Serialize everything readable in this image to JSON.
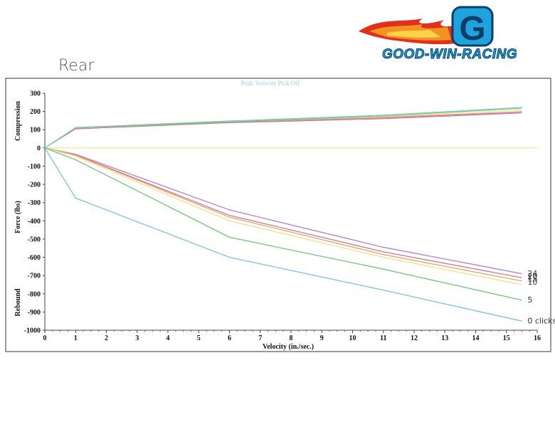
{
  "header": {
    "note": "Rear",
    "logo_text": "GOOD-WIN-RACING",
    "logo_letter": "G",
    "logo_name": "good-win-racing-logo"
  },
  "colors": {
    "logo_blue": "#1fa3dc",
    "logo_orange": "#f39321",
    "logo_red": "#e0301e",
    "frame": "#555555",
    "grid_zero": "#e8e08a"
  },
  "chart_data": {
    "type": "line",
    "title": "Peak Velocity Pick Off",
    "xlabel": "Velocity (in./sec.)",
    "ylabel": "Force (lbs)",
    "ylabel_top": "Compression",
    "ylabel_bottom": "Rebound",
    "xlim": [
      0,
      16
    ],
    "ylim": [
      -1000,
      300
    ],
    "x_ticks": [
      0,
      1,
      2,
      3,
      4,
      5,
      6,
      7,
      8,
      9,
      10,
      11,
      12,
      13,
      14,
      15,
      16
    ],
    "y_ticks": [
      300,
      200,
      100,
      0,
      -100,
      -200,
      -300,
      -400,
      -500,
      -600,
      -700,
      -800,
      -900,
      -1000
    ],
    "grid": false,
    "series": [
      {
        "name": "24",
        "color": "#b07fd0",
        "x": [
          0,
          1,
          6,
          11,
          15.5
        ],
        "y": [
          0,
          -35,
          -340,
          -545,
          -690
        ],
        "comp_y": [
          0,
          110,
          140,
          165,
          195
        ]
      },
      {
        "name": "20",
        "color": "#d07a82",
        "x": [
          0,
          1,
          6,
          11,
          15.5
        ],
        "y": [
          0,
          -38,
          -370,
          -570,
          -712
        ],
        "comp_y": [
          0,
          104,
          138,
          160,
          192
        ]
      },
      {
        "name": "15",
        "color": "#e8a070",
        "x": [
          0,
          1,
          6,
          11,
          15.5
        ],
        "y": [
          0,
          -40,
          -380,
          -585,
          -730
        ],
        "comp_y": [
          0,
          108,
          142,
          168,
          200
        ]
      },
      {
        "name": "10",
        "color": "#f2e08a",
        "x": [
          0,
          1,
          6,
          11,
          15.5
        ],
        "y": [
          0,
          -45,
          -400,
          -600,
          -750
        ],
        "comp_y": [
          0,
          112,
          145,
          172,
          210
        ]
      },
      {
        "name": "5",
        "color": "#6cc87a",
        "x": [
          0,
          1,
          6,
          11,
          15.5
        ],
        "y": [
          0,
          -65,
          -490,
          -665,
          -835
        ],
        "comp_y": [
          0,
          110,
          143,
          176,
          218
        ]
      },
      {
        "name": "0 clicks",
        "color": "#78c4e0",
        "x": [
          0,
          1,
          6,
          11,
          15.5
        ],
        "y": [
          0,
          -275,
          -600,
          -780,
          -950
        ],
        "comp_y": [
          0,
          112,
          148,
          180,
          222
        ]
      }
    ]
  }
}
